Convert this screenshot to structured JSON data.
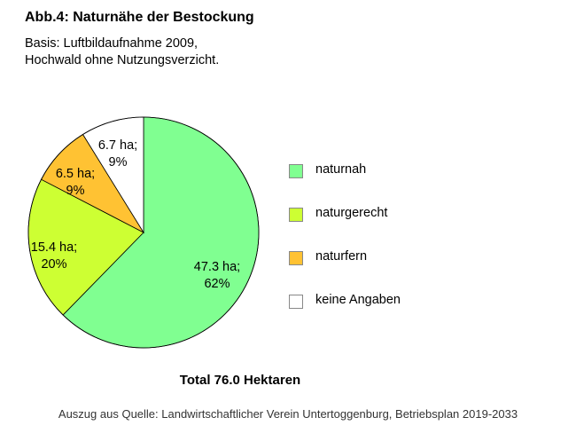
{
  "header": {
    "title": "Abb.4: Naturnähe der Bestockung",
    "subtitle_line1": "Basis: Luftbildaufnahme 2009,",
    "subtitle_line2": "Hochwald ohne Nutzungsverzicht."
  },
  "chart_data": {
    "type": "pie",
    "title": "Abb.4: Naturnähe der Bestockung",
    "unit": "ha",
    "categories": [
      "naturnah",
      "naturgerecht",
      "naturfern",
      "keine Angaben"
    ],
    "values": [
      47.3,
      15.4,
      6.5,
      6.7
    ],
    "percents": [
      "62%",
      "20%",
      "9%",
      "9%"
    ],
    "value_labels": [
      "47.3 ha;",
      "15.4 ha;",
      "6.5 ha;",
      "6.7 ha;"
    ],
    "colors": [
      "#80ff91",
      "#cdff33",
      "#ffc233",
      "#ffffff"
    ],
    "legend_position": "right",
    "total_label": "Total 76.0 Hektaren"
  },
  "legend": {
    "items": [
      {
        "label": "naturnah",
        "color": "#80ff91"
      },
      {
        "label": "naturgerecht",
        "color": "#cdff33"
      },
      {
        "label": "naturfern",
        "color": "#ffc233"
      },
      {
        "label": "keine Angaben",
        "color": "#ffffff"
      }
    ]
  },
  "footer": {
    "total": "Total 76.0 Hektaren",
    "source": "Auszug aus Quelle: Landwirtschaftlicher Verein Untertoggenburg, Betriebsplan 2019-2033"
  }
}
